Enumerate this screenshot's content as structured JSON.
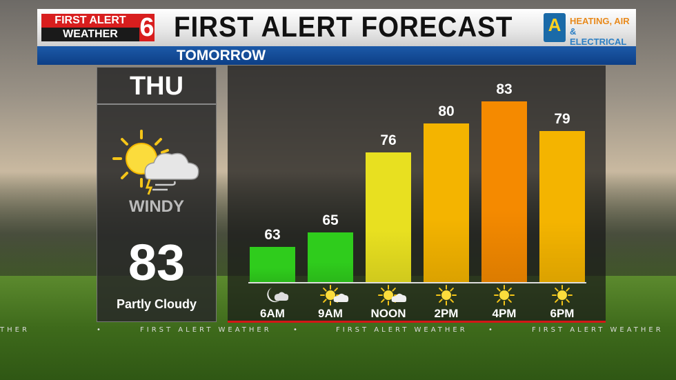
{
  "header": {
    "logo_line1": "FIRST ALERT",
    "logo_line2": "WEATHER",
    "logo_number": "6",
    "title": "FIRST ALERT FORECAST",
    "sponsor_letter": "A",
    "sponsor_line1": "HEATING, AIR",
    "sponsor_line2": "& ELECTRICAL",
    "subtitle": "TOMORROW"
  },
  "daily": {
    "day": "THU",
    "icon": "sun-cloud-wind-icon",
    "wind": "WINDY",
    "high": "83",
    "condition": "Partly Cloudy"
  },
  "footer": {
    "text": "FIRST ALERT WEATHER",
    "partial_left": "THER"
  },
  "chart_data": {
    "type": "bar",
    "categories": [
      "6AM",
      "9AM",
      "NOON",
      "2PM",
      "4PM",
      "6PM"
    ],
    "values": [
      63,
      65,
      76,
      80,
      83,
      79
    ],
    "icons": [
      "moon-cloud-icon",
      "sun-cloud-icon",
      "sun-cloud-icon",
      "sun-icon",
      "sun-icon",
      "sun-icon"
    ],
    "colors": [
      "#2fcc1c",
      "#2fcc1c",
      "#e8e020",
      "#f4b400",
      "#f58a00",
      "#f4b400"
    ],
    "title": "",
    "xlabel": "",
    "ylabel": ""
  }
}
